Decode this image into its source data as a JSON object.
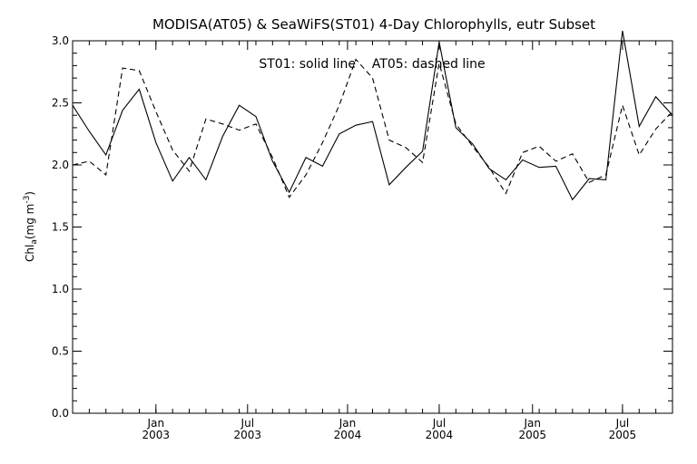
{
  "chart_data": {
    "type": "line",
    "title": "MODISA(AT05) & SeaWiFS(ST01) 4-Day Chlorophylls, eutr Subset",
    "ylabel": "Chl",
    "ylabel_sub": "a",
    "ylabel_units_open": "(mg m",
    "ylabel_units_sup": "-3",
    "ylabel_units_close": ")",
    "annotation": "ST01: solid line    AT05: dashed line",
    "xlim": [
      0,
      36
    ],
    "ylim": [
      0.0,
      3.0
    ],
    "yticks": [
      "0.0",
      "0.5",
      "1.0",
      "1.5",
      "2.0",
      "2.5",
      "3.0"
    ],
    "xticks": [
      {
        "month": "Jan",
        "year": "2003",
        "x": 5.0
      },
      {
        "month": "Jul",
        "year": "2003",
        "x": 10.5
      },
      {
        "month": "Jan",
        "year": "2004",
        "x": 16.5
      },
      {
        "month": "Jul",
        "year": "2004",
        "x": 22.0
      },
      {
        "month": "Jan",
        "year": "2005",
        "x": 27.6
      },
      {
        "month": "Jul",
        "year": "2005",
        "x": 33.0
      }
    ],
    "series": [
      {
        "name": "ST01",
        "style": "solid",
        "x": [
          0,
          1,
          2,
          3,
          4,
          5,
          6,
          7,
          8,
          9,
          10,
          11,
          12,
          13,
          14,
          15,
          16,
          17,
          18,
          19,
          20,
          21,
          22,
          23,
          24,
          25,
          26,
          27,
          28,
          29,
          30,
          31,
          32,
          33,
          34,
          35,
          36
        ],
        "values": [
          2.48,
          2.27,
          2.08,
          2.44,
          2.61,
          2.18,
          1.87,
          2.06,
          1.88,
          2.23,
          2.48,
          2.39,
          2.03,
          1.78,
          2.06,
          1.99,
          2.25,
          2.32,
          2.35,
          1.84,
          1.98,
          2.11,
          2.99,
          2.3,
          2.17,
          1.97,
          1.88,
          2.04,
          1.98,
          1.99,
          1.72,
          1.89,
          1.88,
          3.08,
          2.31,
          2.55,
          2.4
        ]
      },
      {
        "name": "AT05",
        "style": "dashed",
        "x": [
          0,
          1,
          2,
          3,
          4,
          5,
          6,
          7,
          8,
          9,
          10,
          11,
          12,
          13,
          14,
          15,
          16,
          17,
          18,
          19,
          20,
          21,
          22,
          23,
          24,
          25,
          26,
          27,
          28,
          29,
          30,
          31,
          32,
          33,
          34,
          35,
          36
        ],
        "values": [
          2.0,
          2.03,
          1.92,
          2.78,
          2.76,
          2.43,
          2.12,
          1.95,
          2.37,
          2.33,
          2.28,
          2.33,
          2.06,
          1.74,
          1.92,
          2.18,
          2.48,
          2.85,
          2.7,
          2.2,
          2.14,
          2.02,
          2.82,
          2.33,
          2.15,
          1.98,
          1.77,
          2.1,
          2.15,
          2.03,
          2.09,
          1.86,
          1.92,
          2.48,
          2.08,
          2.29,
          2.43
        ]
      }
    ]
  }
}
